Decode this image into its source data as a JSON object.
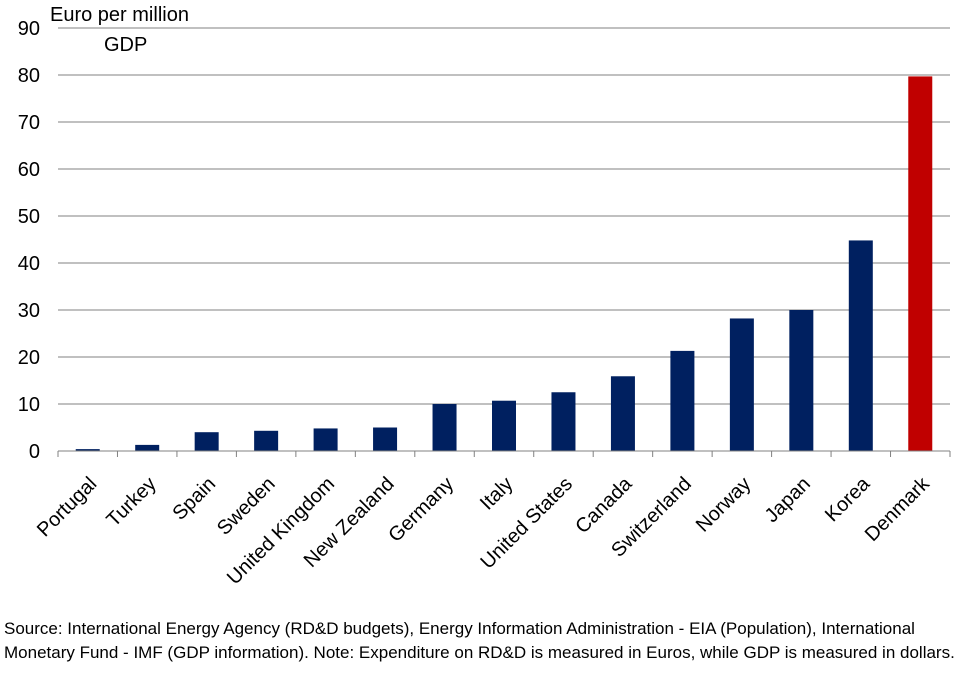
{
  "chart_data": {
    "type": "bar",
    "ylabel_lines": [
      "Euro per million",
      "GDP"
    ],
    "categories": [
      "Portugal",
      "Turkey",
      "Spain",
      "Sweden",
      "United Kingdom",
      "New Zealand",
      "Germany",
      "Italy",
      "United States",
      "Canada",
      "Switzerland",
      "Norway",
      "Japan",
      "Korea",
      "Denmark"
    ],
    "values": [
      0.4,
      1.3,
      4.0,
      4.3,
      4.8,
      5.0,
      10.0,
      10.7,
      12.5,
      15.9,
      21.3,
      28.2,
      30.0,
      44.8,
      79.7
    ],
    "highlight_category": "Denmark",
    "ylim": [
      0,
      90
    ],
    "yticks": [
      0,
      10,
      20,
      30,
      40,
      50,
      60,
      70,
      80,
      90
    ],
    "grid": true,
    "legend": "none",
    "colors": {
      "bar": "#002060",
      "highlight": "#C00000",
      "grid": "#808080",
      "axis": "#808080"
    }
  },
  "source_note": "Source: International Energy Agency (RD&D budgets), Energy Information Administration - EIA (Population), International Monetary Fund - IMF (GDP information). Note: Expenditure on RD&D is measured in Euros, while GDP is measured in dollars."
}
